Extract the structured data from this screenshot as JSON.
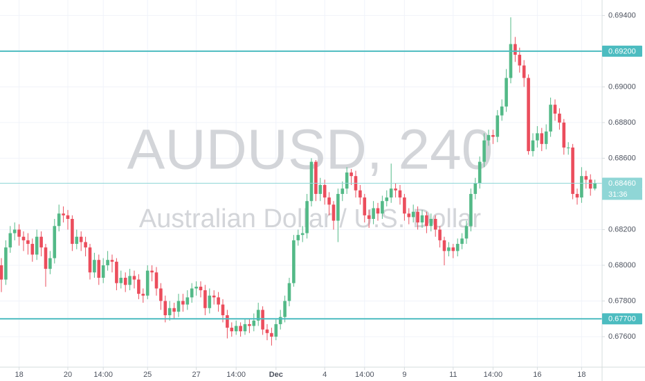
{
  "chart_data": {
    "type": "candlestick",
    "title": "AUDUSD, 240",
    "subtitle": "Australian Dollar / U.S. Dollar",
    "categories": [
      null,
      null,
      null,
      null,
      "18",
      null,
      null,
      null,
      null,
      null,
      null,
      null,
      null,
      null,
      null,
      "20",
      null,
      null,
      null,
      null,
      null,
      null,
      null,
      "14:00",
      null,
      null,
      null,
      null,
      null,
      null,
      null,
      null,
      null,
      "25",
      null,
      null,
      null,
      null,
      null,
      null,
      null,
      null,
      null,
      null,
      "27",
      null,
      null,
      null,
      null,
      null,
      null,
      null,
      null,
      "14:00",
      null,
      null,
      null,
      null,
      null,
      null,
      null,
      null,
      "Dec",
      null,
      null,
      null,
      null,
      null,
      null,
      null,
      null,
      null,
      null,
      "4",
      null,
      null,
      null,
      null,
      null,
      null,
      null,
      null,
      "14:00",
      null,
      null,
      null,
      null,
      null,
      null,
      null,
      null,
      "9",
      null,
      null,
      null,
      null,
      null,
      null,
      null,
      null,
      null,
      null,
      "11",
      null,
      null,
      null,
      null,
      null,
      null,
      null,
      null,
      "14:00",
      null,
      null,
      null,
      null,
      null,
      null,
      null,
      null,
      null,
      "16",
      null,
      null,
      null,
      null,
      null,
      null,
      null,
      null,
      null,
      "18",
      null,
      null,
      null
    ],
    "open": [
      0.68,
      0.6792,
      0.681,
      0.6818,
      0.682,
      0.6816,
      0.6814,
      0.6812,
      0.6806,
      0.6816,
      0.681,
      0.6798,
      0.6804,
      0.6822,
      0.6829,
      0.6828,
      0.6826,
      0.6812,
      0.6816,
      0.6813,
      0.681,
      0.6796,
      0.6803,
      0.6793,
      0.68,
      0.6803,
      0.6802,
      0.679,
      0.6793,
      0.6789,
      0.6794,
      0.6792,
      0.6784,
      0.6783,
      0.6797,
      0.6796,
      0.6787,
      0.678,
      0.6772,
      0.6776,
      0.6774,
      0.678,
      0.6778,
      0.6782,
      0.6787,
      0.6788,
      0.6786,
      0.6776,
      0.6783,
      0.6782,
      0.6778,
      0.6772,
      0.6765,
      0.6763,
      0.6766,
      0.6763,
      0.6767,
      0.6766,
      0.6769,
      0.6775,
      0.6764,
      0.6762,
      0.676,
      0.6767,
      0.6771,
      0.678,
      0.679,
      0.6814,
      0.6817,
      0.6818,
      0.6836,
      0.6858,
      0.684,
      0.6845,
      0.6838,
      0.6834,
      0.6825,
      0.684,
      0.6843,
      0.6852,
      0.685,
      0.6842,
      0.6838,
      0.6828,
      0.6826,
      0.6832,
      0.6829,
      0.6836,
      0.6838,
      0.6843,
      0.6842,
      0.6838,
      0.6829,
      0.6827,
      0.683,
      0.6824,
      0.6828,
      0.6822,
      0.6826,
      0.682,
      0.6814,
      0.6808,
      0.681,
      0.6808,
      0.6812,
      0.6815,
      0.6822,
      0.684,
      0.6846,
      0.6858,
      0.687,
      0.6873,
      0.6872,
      0.6884,
      0.6889,
      0.6905,
      0.6924,
      0.6918,
      0.6912,
      0.6905,
      0.6864,
      0.687,
      0.6874,
      0.6868,
      0.6875,
      0.689,
      0.6885,
      0.688,
      0.6866,
      0.6866,
      0.684,
      0.6838,
      0.685,
      0.6848,
      0.6843
    ],
    "high": [
      0.6804,
      0.6814,
      0.6822,
      0.6824,
      0.6823,
      0.6819,
      0.6818,
      0.6815,
      0.682,
      0.6819,
      0.6812,
      0.6808,
      0.6826,
      0.6834,
      0.6833,
      0.6831,
      0.6828,
      0.682,
      0.6819,
      0.6816,
      0.6812,
      0.6807,
      0.6806,
      0.6804,
      0.6808,
      0.6806,
      0.6804,
      0.6797,
      0.6796,
      0.6798,
      0.6797,
      0.6795,
      0.6787,
      0.68,
      0.68,
      0.6799,
      0.679,
      0.6783,
      0.678,
      0.6779,
      0.6784,
      0.6784,
      0.6786,
      0.679,
      0.6791,
      0.6791,
      0.6789,
      0.6787,
      0.6786,
      0.6785,
      0.6781,
      0.6775,
      0.6768,
      0.6769,
      0.6768,
      0.677,
      0.677,
      0.6773,
      0.6779,
      0.6777,
      0.6767,
      0.6765,
      0.677,
      0.6775,
      0.6783,
      0.6793,
      0.6817,
      0.682,
      0.6822,
      0.684,
      0.686,
      0.6859,
      0.6849,
      0.6848,
      0.6841,
      0.6836,
      0.6843,
      0.6847,
      0.6855,
      0.6854,
      0.6853,
      0.6845,
      0.684,
      0.6831,
      0.6836,
      0.6835,
      0.6839,
      0.6842,
      0.6857,
      0.6846,
      0.6845,
      0.684,
      0.6832,
      0.6834,
      0.6833,
      0.6831,
      0.683,
      0.6829,
      0.6828,
      0.6822,
      0.6816,
      0.6813,
      0.6812,
      0.6815,
      0.6818,
      0.6825,
      0.6843,
      0.6849,
      0.6861,
      0.6874,
      0.6876,
      0.6876,
      0.6887,
      0.6893,
      0.691,
      0.6939,
      0.6928,
      0.6922,
      0.6915,
      0.6907,
      0.6874,
      0.6878,
      0.6877,
      0.6879,
      0.6894,
      0.6893,
      0.6888,
      0.6882,
      0.6869,
      0.6868,
      0.6843,
      0.6855,
      0.6853,
      0.6851,
      0.6848
    ],
    "low": [
      0.6785,
      0.6789,
      0.6807,
      0.6814,
      0.6811,
      0.6808,
      0.6806,
      0.6802,
      0.6803,
      0.6805,
      0.6788,
      0.6795,
      0.6801,
      0.6819,
      0.6824,
      0.682,
      0.6808,
      0.6809,
      0.6808,
      0.6805,
      0.6792,
      0.6793,
      0.6789,
      0.679,
      0.6797,
      0.6796,
      0.6786,
      0.6787,
      0.6785,
      0.6786,
      0.6787,
      0.6781,
      0.6779,
      0.6781,
      0.6791,
      0.6783,
      0.6775,
      0.6768,
      0.6769,
      0.677,
      0.6771,
      0.6774,
      0.6775,
      0.6779,
      0.6783,
      0.6782,
      0.6772,
      0.6773,
      0.6778,
      0.6774,
      0.6768,
      0.6759,
      0.676,
      0.6761,
      0.676,
      0.6761,
      0.6762,
      0.6763,
      0.6766,
      0.6761,
      0.6758,
      0.6755,
      0.6758,
      0.6764,
      0.6768,
      0.6777,
      0.6788,
      0.6811,
      0.6813,
      0.6815,
      0.6833,
      0.6836,
      0.6836,
      0.6834,
      0.6828,
      0.682,
      0.6813,
      0.6836,
      0.684,
      0.6845,
      0.6838,
      0.6834,
      0.6824,
      0.6821,
      0.6823,
      0.6825,
      0.6826,
      0.6833,
      0.6835,
      0.6838,
      0.6834,
      0.6825,
      0.6823,
      0.6824,
      0.682,
      0.6821,
      0.6818,
      0.6819,
      0.6816,
      0.681,
      0.68,
      0.6805,
      0.6804,
      0.6805,
      0.6809,
      0.6812,
      0.6819,
      0.6837,
      0.6843,
      0.6855,
      0.6867,
      0.6868,
      0.6869,
      0.6881,
      0.6886,
      0.6902,
      0.6914,
      0.6908,
      0.69,
      0.6862,
      0.6861,
      0.6866,
      0.6864,
      0.6865,
      0.6872,
      0.6881,
      0.6876,
      0.6862,
      0.6862,
      0.6837,
      0.6834,
      0.6835,
      0.6843,
      0.6839,
      0.6842
    ],
    "close": [
      0.6792,
      0.681,
      0.6818,
      0.682,
      0.6816,
      0.6814,
      0.6812,
      0.6806,
      0.6816,
      0.681,
      0.6798,
      0.6804,
      0.6822,
      0.6829,
      0.6828,
      0.6826,
      0.6812,
      0.6816,
      0.6813,
      0.681,
      0.6796,
      0.6803,
      0.6793,
      0.68,
      0.6803,
      0.6802,
      0.679,
      0.6793,
      0.6789,
      0.6794,
      0.6792,
      0.6784,
      0.6783,
      0.6797,
      0.6796,
      0.6787,
      0.678,
      0.6772,
      0.6776,
      0.6774,
      0.678,
      0.6778,
      0.6782,
      0.6787,
      0.6788,
      0.6786,
      0.6776,
      0.6783,
      0.6782,
      0.6778,
      0.6772,
      0.6765,
      0.6763,
      0.6766,
      0.6763,
      0.6767,
      0.6766,
      0.6769,
      0.6775,
      0.6764,
      0.6762,
      0.676,
      0.6767,
      0.6771,
      0.678,
      0.679,
      0.6814,
      0.6817,
      0.6818,
      0.6836,
      0.6858,
      0.684,
      0.6845,
      0.6838,
      0.6834,
      0.6825,
      0.684,
      0.6843,
      0.6852,
      0.685,
      0.6842,
      0.6838,
      0.6828,
      0.6826,
      0.6832,
      0.6829,
      0.6836,
      0.6838,
      0.6843,
      0.6842,
      0.6838,
      0.6829,
      0.6827,
      0.683,
      0.6824,
      0.6828,
      0.6822,
      0.6826,
      0.682,
      0.6814,
      0.6808,
      0.681,
      0.6808,
      0.6812,
      0.6815,
      0.6822,
      0.684,
      0.6846,
      0.6858,
      0.687,
      0.6873,
      0.6872,
      0.6884,
      0.6889,
      0.6905,
      0.6924,
      0.6918,
      0.6912,
      0.6905,
      0.6864,
      0.687,
      0.6874,
      0.6868,
      0.6875,
      0.689,
      0.6885,
      0.688,
      0.6866,
      0.6866,
      0.684,
      0.6838,
      0.685,
      0.6848,
      0.6843,
      0.6846
    ],
    "up_color": "#53b987",
    "down_color": "#eb4d5c",
    "ylim": [
      0.67429,
      0.69487
    ],
    "yticks": [
      {
        "value": 0.676,
        "label": "0.67600"
      },
      {
        "value": 0.678,
        "label": "0.67800"
      },
      {
        "value": 0.68,
        "label": "0.68000"
      },
      {
        "value": 0.682,
        "label": "0.68200"
      },
      {
        "value": 0.686,
        "label": "0.68600"
      },
      {
        "value": 0.688,
        "label": "0.68800"
      },
      {
        "value": 0.69,
        "label": "0.69000"
      },
      {
        "value": 0.694,
        "label": "0.69400"
      }
    ],
    "grid": true,
    "hlines": [
      {
        "value": 0.692,
        "label": "0.69200",
        "color": "#4cbcc0"
      },
      {
        "value": 0.6846,
        "label": "0.68460",
        "color": "#8fd6d6"
      },
      {
        "value": 0.677,
        "label": "0.67700",
        "color": "#4cbcc0"
      }
    ],
    "countdown": "31:36"
  }
}
